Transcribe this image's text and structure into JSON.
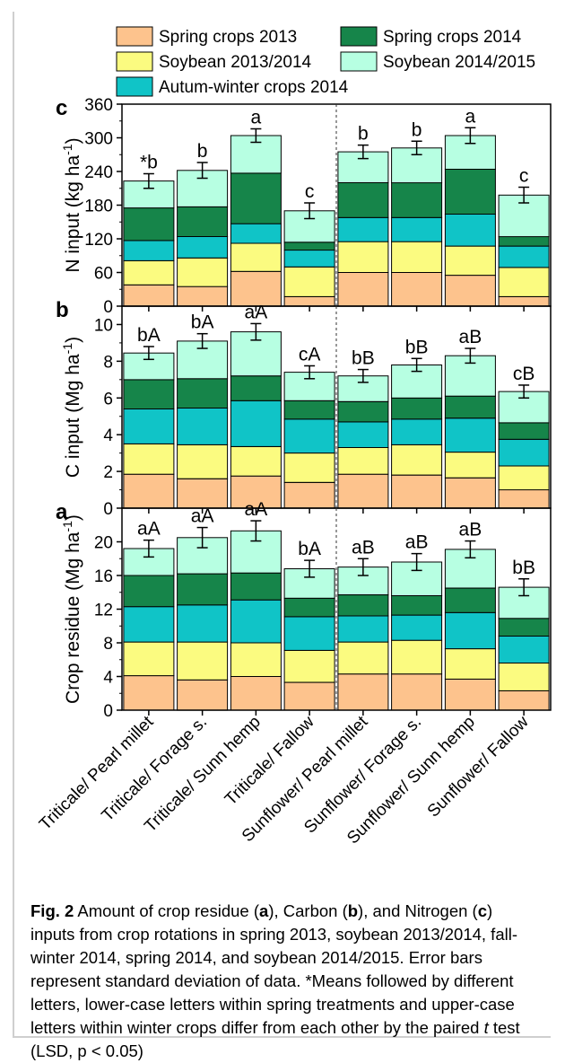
{
  "legend": [
    {
      "label": "Spring crops 2013",
      "color": "#FDC38D"
    },
    {
      "label": "Spring crops 2014",
      "color": "#16854A"
    },
    {
      "label": "Soybean 2013/2014",
      "color": "#FBFB80"
    },
    {
      "label": "Soybean 2014/2015",
      "color": "#B7FFE2"
    },
    {
      "label": "Autum-winter crops 2014",
      "color": "#10C4C7"
    }
  ],
  "categories": [
    "Triticale/ Pearl millet",
    "Triticale/ Forage s.",
    "Triticale/ Sunn hemp",
    "Triticale/ Fallow",
    "Sunflower/ Pearl millet",
    "Sunflower/ Forage s.",
    "Sunflower/ Sunn hemp",
    "Sunflower/ Fallow"
  ],
  "chart_data": [
    {
      "type": "bar",
      "panel_letter": "c",
      "ylabel": "N input (kg ha",
      "ylabel_sup": "-1",
      "ylabel_tail": ")",
      "ylim": [
        0,
        360
      ],
      "yticks": [
        "0",
        "60",
        "120",
        "180",
        "240",
        "300",
        "360"
      ],
      "stacked": true,
      "series_order": [
        "Spring crops 2013",
        "Soybean 2013/2014",
        "Autum-winter crops 2014",
        "Spring crops 2014",
        "Soybean 2014/2015"
      ],
      "series": [
        {
          "name": "Spring crops 2013",
          "values": [
            38,
            35,
            62,
            17,
            60,
            60,
            55,
            17
          ]
        },
        {
          "name": "Soybean 2013/2014",
          "values": [
            43,
            51,
            50,
            53,
            55,
            55,
            52,
            52
          ]
        },
        {
          "name": "Autum-winter crops 2014",
          "values": [
            36,
            38,
            35,
            30,
            43,
            43,
            57,
            38
          ]
        },
        {
          "name": "Spring crops 2014",
          "values": [
            58,
            53,
            90,
            14,
            62,
            62,
            80,
            17
          ]
        },
        {
          "name": "Soybean 2014/2015",
          "values": [
            48,
            65,
            67,
            56,
            55,
            62,
            60,
            74
          ]
        }
      ],
      "error": [
        13,
        14,
        12,
        14,
        12,
        12,
        14,
        14
      ],
      "annotations": [
        "*b",
        "b",
        "a",
        "c",
        "b",
        "b",
        "a",
        "c"
      ]
    },
    {
      "type": "bar",
      "panel_letter": "b",
      "ylabel": "C input (Mg ha",
      "ylabel_sup": "-1",
      "ylabel_tail": ")",
      "ylim": [
        0,
        11
      ],
      "yticks": [
        "0",
        "2",
        "4",
        "6",
        "8",
        "10"
      ],
      "stacked": true,
      "series_order": [
        "Spring crops 2013",
        "Soybean 2013/2014",
        "Autum-winter crops 2014",
        "Spring crops 2014",
        "Soybean 2014/2015"
      ],
      "series": [
        {
          "name": "Spring crops 2013",
          "values": [
            1.85,
            1.6,
            1.75,
            1.4,
            1.85,
            1.8,
            1.65,
            1.0
          ]
        },
        {
          "name": "Soybean 2013/2014",
          "values": [
            1.65,
            1.85,
            1.6,
            1.6,
            1.45,
            1.65,
            1.4,
            1.3
          ]
        },
        {
          "name": "Autum-winter crops 2014",
          "values": [
            1.9,
            2.0,
            2.5,
            1.85,
            1.4,
            1.4,
            1.85,
            1.45
          ]
        },
        {
          "name": "Spring crops 2014",
          "values": [
            1.6,
            1.6,
            1.35,
            1.0,
            1.1,
            1.15,
            1.2,
            0.9
          ]
        },
        {
          "name": "Soybean 2014/2015",
          "values": [
            1.45,
            2.05,
            2.4,
            1.55,
            1.4,
            1.8,
            2.2,
            1.7
          ]
        }
      ],
      "error": [
        0.35,
        0.4,
        0.45,
        0.35,
        0.35,
        0.35,
        0.4,
        0.35
      ],
      "annotations": [
        "bA",
        "bA",
        "aA",
        "cA",
        "bB",
        "bB",
        "aB",
        "cB"
      ]
    },
    {
      "type": "bar",
      "panel_letter": "a",
      "ylabel": "Crop residue (Mg ha",
      "ylabel_sup": "-1",
      "ylabel_tail": ")",
      "ylim": [
        0,
        24
      ],
      "yticks": [
        "0",
        "4",
        "8",
        "12",
        "16",
        "20"
      ],
      "stacked": true,
      "series_order": [
        "Spring crops 2013",
        "Soybean 2013/2014",
        "Autum-winter crops 2014",
        "Spring crops 2014",
        "Soybean 2014/2015"
      ],
      "series": [
        {
          "name": "Spring crops 2013",
          "values": [
            4.1,
            3.6,
            4.0,
            3.3,
            4.3,
            4.3,
            3.7,
            2.3
          ]
        },
        {
          "name": "Soybean 2013/2014",
          "values": [
            4.0,
            4.5,
            4.0,
            3.8,
            3.8,
            4.0,
            3.6,
            3.3
          ]
        },
        {
          "name": "Autum-winter crops 2014",
          "values": [
            4.2,
            4.4,
            5.1,
            4.0,
            3.1,
            3.0,
            4.3,
            3.2
          ]
        },
        {
          "name": "Spring crops 2014",
          "values": [
            3.7,
            3.7,
            3.2,
            2.2,
            2.5,
            2.3,
            2.9,
            2.1
          ]
        },
        {
          "name": "Soybean 2014/2015",
          "values": [
            3.2,
            4.3,
            5.0,
            3.5,
            3.3,
            4.0,
            4.6,
            3.7
          ]
        }
      ],
      "error": [
        1.0,
        1.2,
        1.2,
        1.0,
        1.0,
        1.0,
        1.0,
        1.0
      ],
      "annotations": [
        "aA",
        "aA",
        "aA",
        "bA",
        "aB",
        "aB",
        "aB",
        "bB"
      ]
    }
  ],
  "caption": {
    "fig_label": "Fig. 2",
    "part1": "  Amount of crop residue (",
    "a": "a",
    "part2": "), Carbon (",
    "b": "b",
    "part3": "), and Nitrogen (",
    "c": "c",
    "part4": ") inputs from crop rotations in spring 2013, soybean 2013/2014, fall-winter 2014, spring 2014, and soybean 2014/2015. Error bars represent standard deviation of data. *Means followed by different letters, lower-case letters within spring treatments and upper-case letters within winter crops differ from each other by the paired ",
    "t": "t",
    "part5": " test (LSD, p < 0.05)"
  }
}
